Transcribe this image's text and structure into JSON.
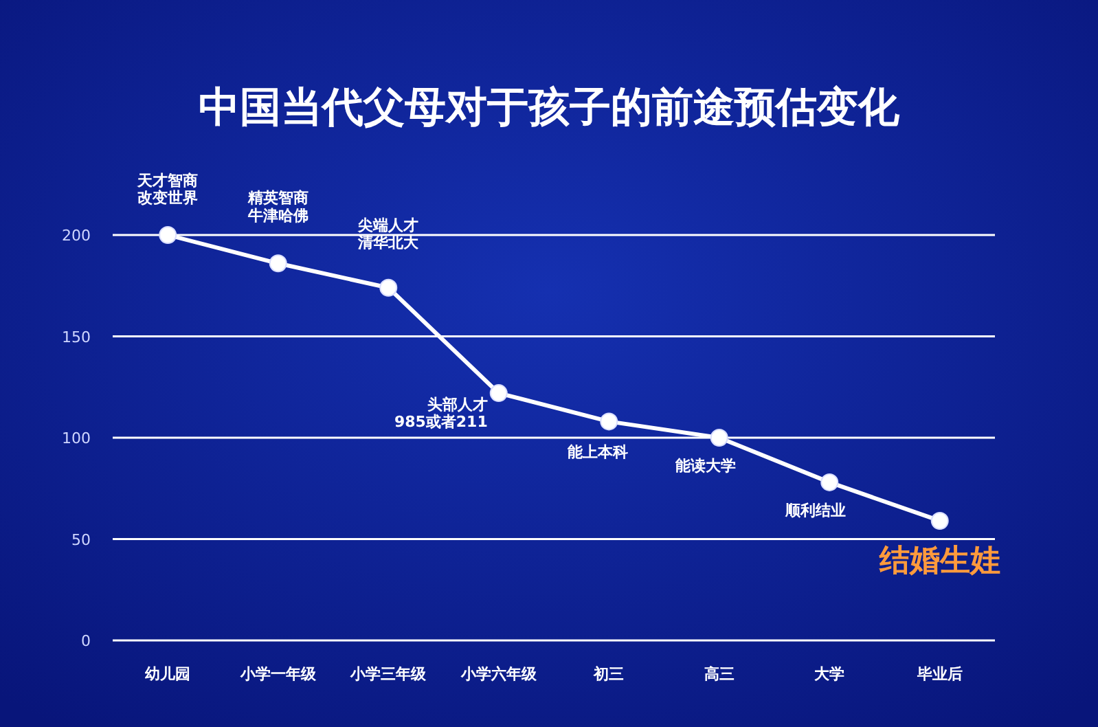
{
  "chart_data": {
    "type": "line",
    "title": "中国当代父母对于孩子的前途预估变化",
    "categories": [
      "幼儿园",
      "小学一年级",
      "小学三年级",
      "小学六年级",
      "初三",
      "高三",
      "大学",
      "毕业后"
    ],
    "series": [
      {
        "color": "#ffffff",
        "values": [
          200,
          186,
          174,
          122,
          108,
          100,
          78,
          59
        ]
      }
    ],
    "ylim": [
      0,
      200
    ],
    "yticks": [
      0,
      50,
      100,
      150,
      200
    ],
    "grid": "y",
    "marker": "circle",
    "line_style": "solid",
    "annotations": [
      {
        "text": "天才智商改变世界",
        "x": "幼儿园",
        "y": 200
      },
      {
        "text": "精英智商牛津哈佛",
        "x": "小学一年级",
        "y": 186
      },
      {
        "text": "尖端人才清华北大",
        "x": "小学三年级",
        "y": 174
      },
      {
        "text": "头部人才985或者211",
        "x": "小学六年级",
        "y": 122
      },
      {
        "text": "能上本科",
        "x": "初三",
        "y": 108
      },
      {
        "text": "能读大学",
        "x": "高三",
        "y": 100
      },
      {
        "text": "顺利结业",
        "x": "大学",
        "y": 78
      },
      {
        "text": "结婚生娃",
        "x": "毕业后",
        "y": 59
      }
    ]
  }
}
